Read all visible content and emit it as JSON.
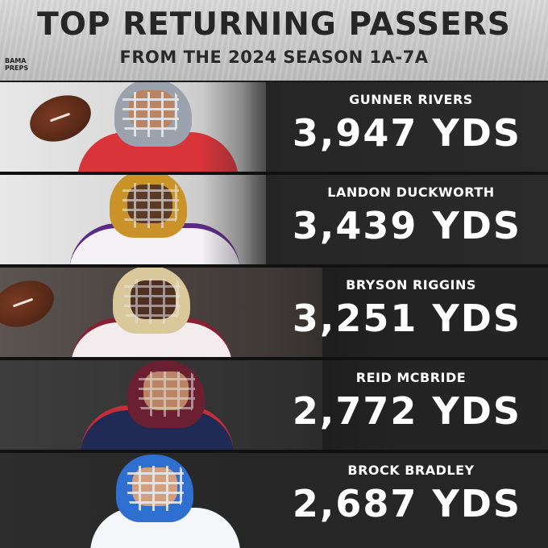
{
  "header": {
    "title": "TOP RETURNING PASSERS",
    "subtitle": "FROM THE 2024 SEASON 1A-7A",
    "logo_line1": "BAMA",
    "logo_line2": "PREPS"
  },
  "players": [
    {
      "name": "GUNNER RIVERS",
      "yards": "3,947 YDS",
      "helmet_color": "#9aa3ad",
      "jersey_color": "#d8343a",
      "accent": "#ffffff"
    },
    {
      "name": "LANDON DUCKWORTH",
      "yards": "3,439 YDS",
      "helmet_color": "#c9932a",
      "jersey_color": "#f4f1f7",
      "accent": "#5a2a86"
    },
    {
      "name": "BRYSON RIGGINS",
      "yards": "3,251 YDS",
      "helmet_color": "#d8c89a",
      "jersey_color": "#f2ecee",
      "accent": "#8a1f34"
    },
    {
      "name": "REID MCBRIDE",
      "yards": "2,772 YDS",
      "helmet_color": "#6a2030",
      "jersey_color": "#1f2b55",
      "accent": "#c62d3a"
    },
    {
      "name": "BROCK BRADLEY",
      "yards": "2,687 YDS",
      "helmet_color": "#2f6fd0",
      "jersey_color": "#f4f6fa",
      "accent": "#1d57b8"
    }
  ]
}
